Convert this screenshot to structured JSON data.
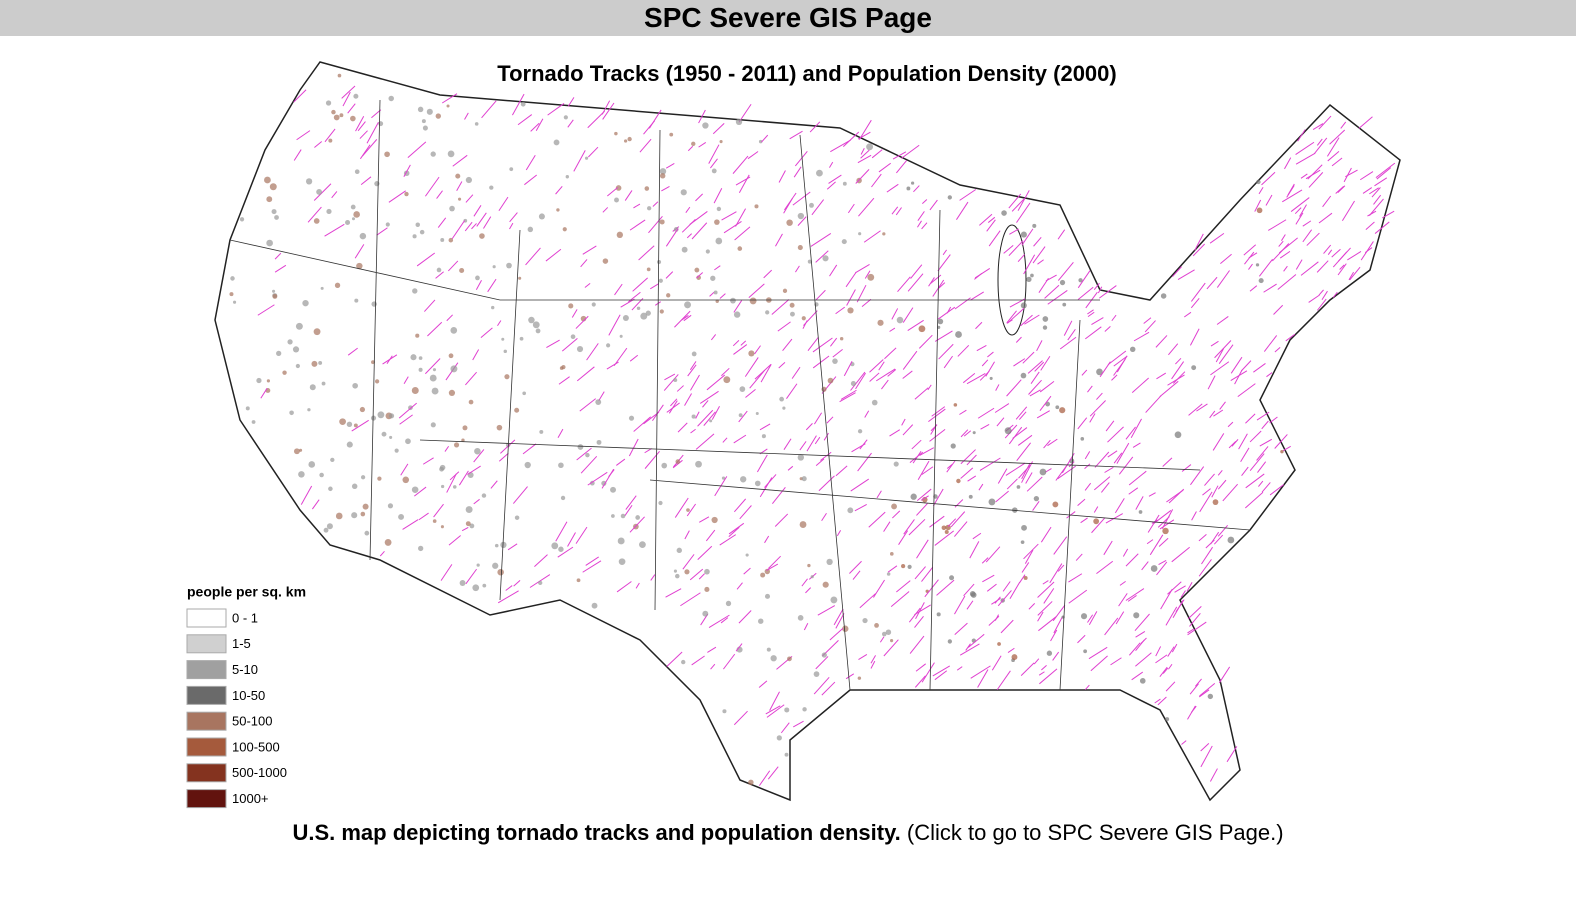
{
  "header": {
    "title": "SPC Severe GIS Page"
  },
  "map": {
    "title": "Tornado Tracks (1950 - 2011) and Population Density (2000)",
    "legend": {
      "title": "people per sq. km",
      "items": [
        {
          "label": "0 - 1",
          "color": "#ffffff"
        },
        {
          "label": "1-5",
          "color": "#d0d0d0"
        },
        {
          "label": "5-10",
          "color": "#a0a0a0"
        },
        {
          "label": "10-50",
          "color": "#6a6a6a"
        },
        {
          "label": "50-100",
          "color": "#a87560"
        },
        {
          "label": "100-500",
          "color": "#a55a3c"
        },
        {
          "label": "500-1000",
          "color": "#84331f"
        },
        {
          "label": "1000+",
          "color": "#62130e"
        }
      ]
    }
  },
  "caption": {
    "bold": "U.S. map depicting tornado tracks and population density.",
    "text": "(Click to go to SPC Severe GIS Page.)"
  }
}
